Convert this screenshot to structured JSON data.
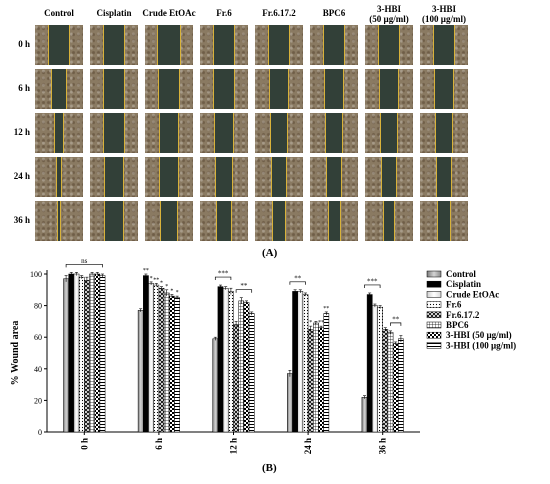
{
  "figure": {
    "panel_a_label": "(A)",
    "panel_b_label": "(B)",
    "column_headers": [
      "Control",
      "Cisplatin",
      "Crude EtOAc",
      "Fr.6",
      "Fr.6.17.2",
      "BPC6",
      "3-HBI\n(50 µg/ml)",
      "3-HBI\n(100 µg/ml)"
    ],
    "row_labels": [
      "0 h",
      "6 h",
      "12 h",
      "24 h",
      "36 h"
    ],
    "wound_gap_fraction": [
      [
        0.42,
        0.45,
        0.48,
        0.45,
        0.45,
        0.44,
        0.42,
        0.44
      ],
      [
        0.3,
        0.45,
        0.42,
        0.42,
        0.4,
        0.4,
        0.4,
        0.4
      ],
      [
        0.18,
        0.42,
        0.38,
        0.4,
        0.36,
        0.36,
        0.35,
        0.35
      ],
      [
        0.1,
        0.4,
        0.38,
        0.36,
        0.3,
        0.3,
        0.3,
        0.32
      ],
      [
        0.05,
        0.38,
        0.35,
        0.33,
        0.26,
        0.25,
        0.24,
        0.26
      ]
    ]
  },
  "chart_data": {
    "type": "bar",
    "ylabel": "% Wound area",
    "ylim": [
      0,
      100
    ],
    "yticks": [
      0,
      20,
      40,
      60,
      80,
      100
    ],
    "categories": [
      "0 h",
      "6 h",
      "12 h",
      "24 h",
      "36 h"
    ],
    "legend_position": "top-right",
    "series": [
      {
        "name": "Control",
        "values": [
          97,
          77,
          59,
          37,
          22
        ],
        "errors": [
          2,
          1,
          1,
          2,
          1
        ]
      },
      {
        "name": "Cisplatin",
        "values": [
          100,
          99,
          92,
          89,
          87
        ],
        "errors": [
          1,
          1,
          1,
          1,
          1
        ]
      },
      {
        "name": "Crude EtOAc",
        "values": [
          100,
          94,
          91,
          89,
          80
        ],
        "errors": [
          1,
          1,
          1,
          1,
          1
        ]
      },
      {
        "name": "Fr.6",
        "values": [
          98,
          93,
          89,
          87,
          79
        ],
        "errors": [
          1,
          1,
          2,
          1,
          1
        ]
      },
      {
        "name": "Fr.6.17.2",
        "values": [
          96,
          91,
          68,
          65,
          65
        ],
        "errors": [
          2,
          1,
          2,
          2,
          1
        ]
      },
      {
        "name": "BPC6",
        "values": [
          100,
          88,
          83,
          69,
          63
        ],
        "errors": [
          1,
          2,
          2,
          1,
          1
        ]
      },
      {
        "name": "3-HBI (50 µg/ml)",
        "values": [
          100,
          86,
          82,
          66,
          56
        ],
        "errors": [
          1,
          1,
          1,
          1,
          1
        ]
      },
      {
        "name": "3-HBI (100 µg/ml)",
        "values": [
          99,
          85,
          75,
          75,
          59
        ],
        "errors": [
          1,
          1,
          1,
          1,
          2
        ]
      }
    ],
    "star_labels": [
      [
        "",
        "",
        "",
        "",
        "",
        "",
        "",
        ""
      ],
      [
        "",
        "**",
        "*",
        "**",
        "*",
        "*",
        "*",
        "*"
      ],
      [
        "",
        "",
        "",
        "",
        "",
        "",
        "",
        ""
      ],
      [
        "",
        "",
        "",
        "",
        "*",
        "",
        "**",
        "**"
      ],
      [
        "",
        "",
        "",
        "",
        "",
        "",
        "",
        ""
      ]
    ],
    "significance_brackets": [
      {
        "group": 0,
        "from_series": 0,
        "to_series": 7,
        "label": "ns"
      },
      {
        "group": 2,
        "from_series": 0,
        "to_series": 3,
        "label": "***"
      },
      {
        "group": 2,
        "from_series": 4,
        "to_series": 7,
        "label": "**"
      },
      {
        "group": 3,
        "from_series": 0,
        "to_series": 3,
        "label": "**"
      },
      {
        "group": 4,
        "from_series": 0,
        "to_series": 3,
        "label": "***"
      },
      {
        "group": 4,
        "from_series": 5,
        "to_series": 7,
        "label": "**"
      }
    ]
  }
}
